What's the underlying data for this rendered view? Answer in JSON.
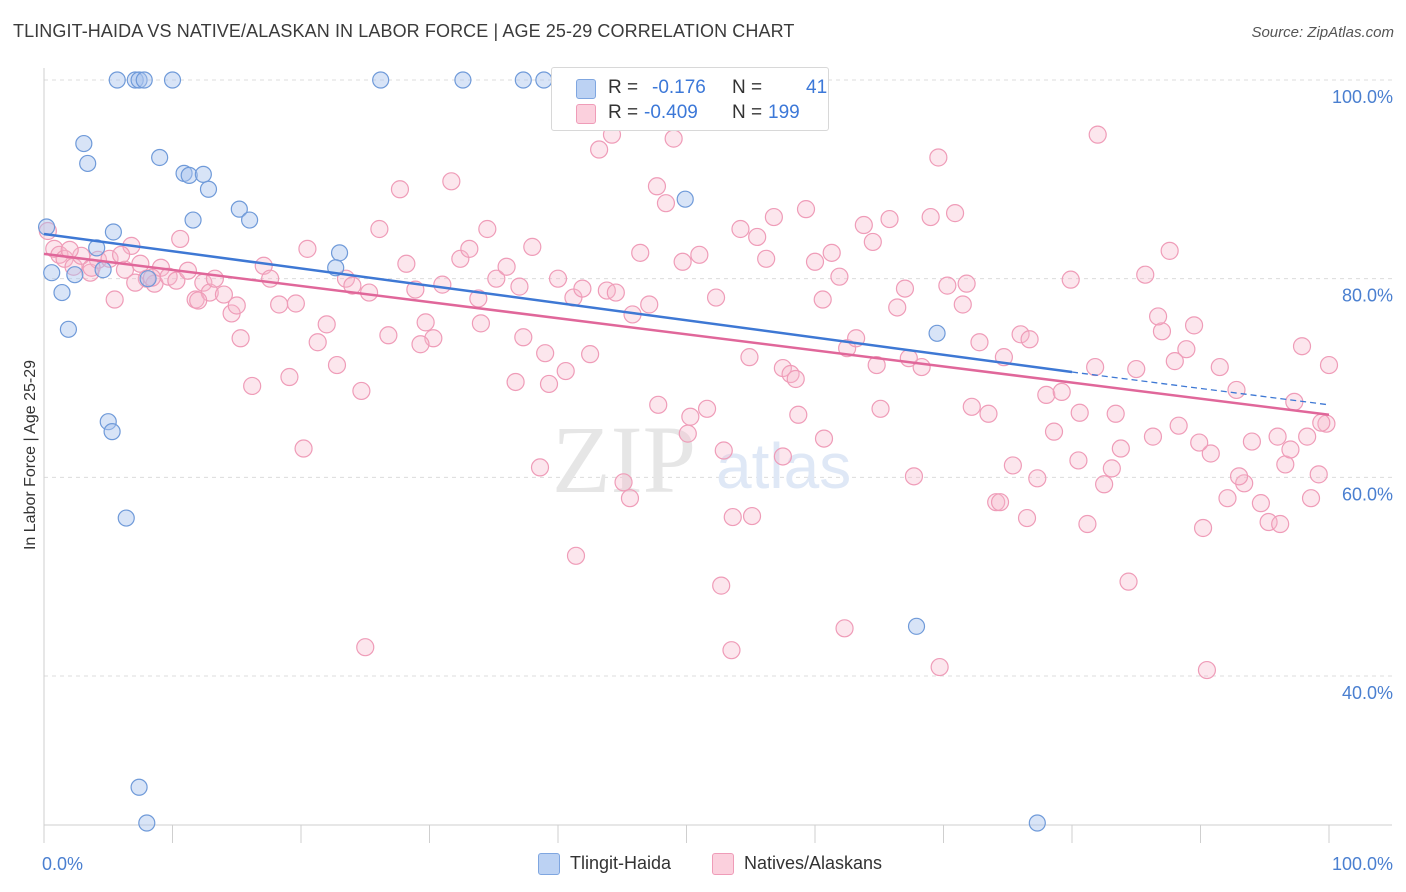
{
  "header": {
    "title": "TLINGIT-HAIDA VS NATIVE/ALASKAN IN LABOR FORCE | AGE 25-29 CORRELATION CHART",
    "source": "Source: ZipAtlas.com"
  },
  "watermark": {
    "zip": "ZIP",
    "atlas": "atlas"
  },
  "legend": {
    "rows": [
      {
        "r_label": "R =",
        "r_value": "-0.176",
        "n_label": "N =",
        "n_value": "41",
        "color": "#a9c4ee"
      },
      {
        "r_label": "R =",
        "r_value": "-0.409",
        "n_label": "N =",
        "n_value": "199",
        "color": "#f6b8cb"
      }
    ]
  },
  "bottom_legend": [
    {
      "label": "Tlingit-Haida",
      "color": "#a9c4ee"
    },
    {
      "label": "Natives/Alaskans",
      "color": "#f6b8cb"
    }
  ],
  "chart_data": {
    "type": "scatter",
    "title": "TLINGIT-HAIDA VS NATIVE/ALASKAN IN LABOR FORCE | AGE 25-29 CORRELATION CHART",
    "xlabel": "",
    "ylabel": "In Labor Force | Age 25-29",
    "xlim": [
      0,
      100
    ],
    "ylim": [
      25,
      100
    ],
    "x_tick_labels": [
      "0.0%",
      "100.0%"
    ],
    "y_tick_labels": [
      "100.0%",
      "80.0%",
      "60.0%",
      "40.0%"
    ],
    "y_ticks": [
      100,
      80,
      60,
      40
    ],
    "grid": true,
    "legend_position": "top-center",
    "colors": {
      "blue": "#4a7fd0",
      "pink": "#e0679a",
      "blue_fill": "#a9c4ee",
      "pink_fill": "#f6b8cb"
    },
    "series": [
      {
        "name": "Tlingit-Haida",
        "color": "#4a7fd0",
        "trend": {
          "x": [
            0,
            80
          ],
          "y": [
            84.5,
            70.6
          ],
          "dashed_to": [
            100,
            67.3
          ]
        },
        "points": [
          [
            0.2,
            85.2
          ],
          [
            0.6,
            80.6
          ],
          [
            1.4,
            78.6
          ],
          [
            1.9,
            74.9
          ],
          [
            2.4,
            80.4
          ],
          [
            3.1,
            93.6
          ],
          [
            3.4,
            91.6
          ],
          [
            4.1,
            83.1
          ],
          [
            4.6,
            80.9
          ],
          [
            5.0,
            65.6
          ],
          [
            5.7,
            100
          ],
          [
            5.4,
            84.7
          ],
          [
            7.1,
            100
          ],
          [
            7.4,
            100
          ],
          [
            7.8,
            100
          ],
          [
            10.0,
            100
          ],
          [
            8.1,
            80.0
          ],
          [
            9.0,
            92.2
          ],
          [
            10.9,
            90.6
          ],
          [
            11.3,
            90.4
          ],
          [
            11.6,
            85.9
          ],
          [
            12.4,
            90.5
          ],
          [
            12.8,
            89.0
          ],
          [
            15.2,
            87.0
          ],
          [
            16.0,
            85.9
          ],
          [
            23.0,
            82.6
          ],
          [
            26.2,
            100
          ],
          [
            32.6,
            100
          ],
          [
            37.3,
            100
          ],
          [
            38.9,
            100
          ],
          [
            22.7,
            81.1
          ],
          [
            5.3,
            64.6
          ],
          [
            6.4,
            55.9
          ],
          [
            7.4,
            28.8
          ],
          [
            8.0,
            25.2
          ],
          [
            9.8,
            20.2
          ],
          [
            49.5,
            96.7
          ],
          [
            49.9,
            88.0
          ],
          [
            69.5,
            74.5
          ],
          [
            67.9,
            45.0
          ],
          [
            77.3,
            25.2
          ]
        ]
      },
      {
        "name": "Natives/Alaskans",
        "color": "#e0679a",
        "trend": {
          "x": [
            0,
            100
          ],
          "y": [
            82.5,
            66.3
          ]
        },
        "points": [
          [
            0.3,
            84.8
          ],
          [
            0.8,
            83.0
          ],
          [
            1.2,
            82.4
          ],
          [
            1.6,
            82.0
          ],
          [
            2.3,
            81.2
          ],
          [
            2.9,
            82.3
          ],
          [
            3.6,
            80.6
          ],
          [
            4.2,
            81.9
          ],
          [
            5.1,
            82.0
          ],
          [
            5.5,
            77.9
          ],
          [
            6.3,
            80.9
          ],
          [
            6.8,
            83.3
          ],
          [
            7.5,
            81.5
          ],
          [
            8.0,
            80.0
          ],
          [
            8.6,
            79.5
          ],
          [
            9.1,
            81.1
          ],
          [
            9.7,
            80.2
          ],
          [
            10.3,
            79.8
          ],
          [
            10.6,
            84.0
          ],
          [
            11.2,
            80.8
          ],
          [
            11.8,
            77.9
          ],
          [
            12.4,
            79.6
          ],
          [
            12.9,
            78.6
          ],
          [
            13.3,
            80.0
          ],
          [
            14.0,
            78.4
          ],
          [
            14.6,
            76.5
          ],
          [
            15.0,
            77.3
          ],
          [
            15.3,
            74.0
          ],
          [
            16.2,
            69.2
          ],
          [
            17.1,
            81.3
          ],
          [
            17.6,
            80.0
          ],
          [
            18.3,
            77.4
          ],
          [
            19.1,
            70.1
          ],
          [
            19.6,
            77.5
          ],
          [
            20.2,
            62.9
          ],
          [
            21.3,
            73.6
          ],
          [
            22.0,
            75.4
          ],
          [
            22.8,
            71.3
          ],
          [
            23.5,
            80.0
          ],
          [
            24.0,
            79.3
          ],
          [
            24.7,
            68.7
          ],
          [
            25.3,
            78.6
          ],
          [
            26.1,
            85.0
          ],
          [
            26.8,
            74.3
          ],
          [
            27.7,
            89.0
          ],
          [
            28.2,
            81.5
          ],
          [
            28.9,
            78.9
          ],
          [
            29.7,
            75.6
          ],
          [
            30.3,
            74.0
          ],
          [
            31.0,
            79.4
          ],
          [
            31.7,
            89.8
          ],
          [
            32.4,
            82.0
          ],
          [
            33.1,
            83.0
          ],
          [
            33.8,
            78.0
          ],
          [
            34.5,
            85.0
          ],
          [
            35.2,
            80.0
          ],
          [
            36.0,
            81.2
          ],
          [
            36.7,
            69.6
          ],
          [
            37.3,
            74.1
          ],
          [
            38.0,
            83.2
          ],
          [
            38.6,
            61.0
          ],
          [
            39.3,
            69.4
          ],
          [
            40.0,
            80.0
          ],
          [
            40.6,
            70.7
          ],
          [
            41.2,
            78.1
          ],
          [
            41.9,
            79.0
          ],
          [
            42.5,
            72.4
          ],
          [
            43.2,
            93.0
          ],
          [
            43.8,
            78.8
          ],
          [
            44.5,
            78.6
          ],
          [
            45.1,
            59.5
          ],
          [
            45.8,
            76.4
          ],
          [
            46.4,
            82.6
          ],
          [
            47.1,
            77.4
          ],
          [
            47.7,
            89.3
          ],
          [
            48.4,
            87.6
          ],
          [
            49.0,
            94.1
          ],
          [
            49.7,
            81.7
          ],
          [
            50.3,
            66.1
          ],
          [
            51.0,
            82.4
          ],
          [
            51.6,
            66.9
          ],
          [
            52.3,
            78.1
          ],
          [
            52.9,
            62.7
          ],
          [
            53.6,
            56.0
          ],
          [
            54.2,
            85.0
          ],
          [
            54.9,
            72.1
          ],
          [
            55.5,
            84.2
          ],
          [
            56.2,
            82.0
          ],
          [
            56.8,
            86.2
          ],
          [
            57.5,
            71.0
          ],
          [
            58.1,
            70.4
          ],
          [
            58.7,
            66.3
          ],
          [
            59.3,
            87.0
          ],
          [
            60.0,
            81.7
          ],
          [
            60.6,
            77.9
          ],
          [
            61.3,
            82.6
          ],
          [
            61.9,
            80.2
          ],
          [
            62.5,
            73.0
          ],
          [
            63.2,
            74.0
          ],
          [
            63.8,
            85.4
          ],
          [
            64.5,
            83.7
          ],
          [
            65.1,
            66.9
          ],
          [
            65.8,
            86.0
          ],
          [
            66.4,
            77.1
          ],
          [
            67.0,
            79.0
          ],
          [
            67.7,
            60.1
          ],
          [
            68.3,
            71.1
          ],
          [
            69.0,
            86.2
          ],
          [
            69.6,
            92.2
          ],
          [
            70.3,
            79.3
          ],
          [
            70.9,
            86.6
          ],
          [
            71.5,
            77.4
          ],
          [
            72.2,
            67.1
          ],
          [
            72.8,
            73.6
          ],
          [
            73.5,
            66.4
          ],
          [
            74.1,
            57.5
          ],
          [
            74.7,
            72.1
          ],
          [
            75.4,
            61.2
          ],
          [
            76.0,
            74.4
          ],
          [
            76.7,
            73.9
          ],
          [
            77.3,
            59.9
          ],
          [
            78.0,
            68.3
          ],
          [
            78.6,
            64.6
          ],
          [
            79.2,
            68.6
          ],
          [
            79.9,
            79.9
          ],
          [
            80.5,
            61.7
          ],
          [
            81.2,
            55.3
          ],
          [
            81.8,
            71.1
          ],
          [
            82.5,
            59.3
          ],
          [
            83.1,
            60.9
          ],
          [
            83.8,
            62.9
          ],
          [
            84.4,
            49.5
          ],
          [
            85.0,
            70.9
          ],
          [
            85.7,
            80.4
          ],
          [
            86.3,
            64.1
          ],
          [
            87.0,
            74.7
          ],
          [
            87.6,
            82.8
          ],
          [
            88.3,
            65.2
          ],
          [
            88.9,
            72.9
          ],
          [
            89.5,
            75.3
          ],
          [
            90.2,
            54.9
          ],
          [
            90.8,
            62.4
          ],
          [
            91.5,
            71.1
          ],
          [
            92.1,
            57.9
          ],
          [
            92.8,
            68.8
          ],
          [
            93.4,
            59.4
          ],
          [
            94.0,
            63.6
          ],
          [
            94.7,
            57.4
          ],
          [
            95.3,
            55.5
          ],
          [
            96.0,
            64.1
          ],
          [
            96.6,
            61.3
          ],
          [
            97.3,
            67.6
          ],
          [
            97.9,
            73.2
          ],
          [
            98.6,
            57.9
          ],
          [
            99.2,
            60.3
          ],
          [
            99.8,
            65.4
          ],
          [
            100.0,
            71.3
          ],
          [
            25.0,
            42.9
          ],
          [
            41.4,
            52.1
          ],
          [
            53.5,
            42.6
          ],
          [
            52.7,
            49.1
          ],
          [
            62.3,
            44.8
          ],
          [
            69.7,
            40.9
          ],
          [
            76.5,
            55.9
          ],
          [
            90.5,
            40.6
          ],
          [
            57.5,
            62.1
          ],
          [
            47.8,
            67.3
          ],
          [
            55.1,
            56.1
          ],
          [
            60.7,
            63.9
          ],
          [
            86.7,
            76.2
          ],
          [
            80.6,
            66.5
          ],
          [
            97.0,
            62.8
          ],
          [
            7.1,
            79.6
          ],
          [
            12.0,
            77.8
          ],
          [
            20.5,
            83.0
          ],
          [
            29.3,
            73.4
          ],
          [
            34.0,
            75.5
          ],
          [
            37.0,
            79.2
          ],
          [
            39.0,
            72.5
          ],
          [
            44.2,
            94.5
          ],
          [
            45.6,
            57.9
          ],
          [
            50.1,
            64.4
          ],
          [
            58.5,
            69.9
          ],
          [
            64.8,
            71.3
          ],
          [
            67.3,
            72.0
          ],
          [
            71.8,
            79.5
          ],
          [
            74.4,
            57.5
          ],
          [
            82.0,
            94.5
          ],
          [
            83.4,
            66.4
          ],
          [
            88.0,
            71.7
          ],
          [
            89.9,
            63.5
          ],
          [
            93.0,
            60.1
          ],
          [
            96.2,
            55.3
          ],
          [
            98.3,
            64.1
          ],
          [
            99.4,
            65.5
          ],
          [
            2.0,
            82.9
          ],
          [
            3.7,
            81.1
          ],
          [
            6.0,
            82.4
          ],
          [
            8.4,
            80.1
          ]
        ]
      }
    ]
  }
}
